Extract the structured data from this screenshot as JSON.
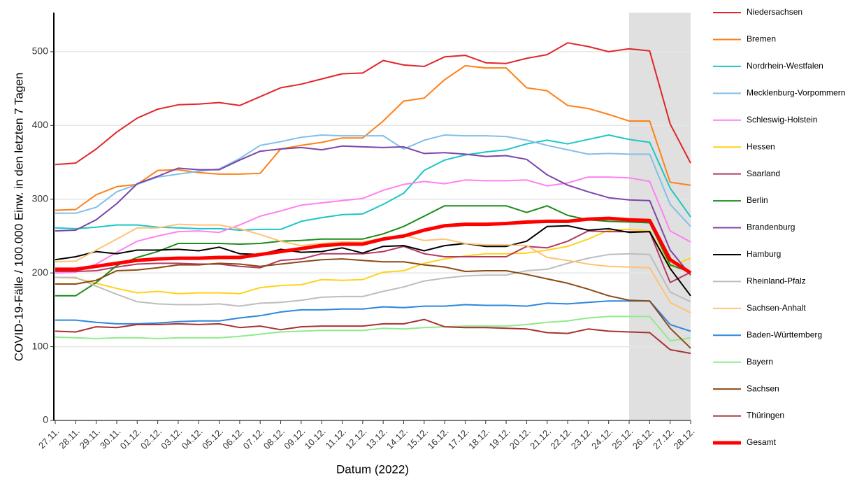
{
  "chart_data": {
    "type": "line",
    "y_label": "COVID-19-Fälle / 100.000 Einw. in den letzten 7 Tagen",
    "x_label": "Datum (2022)",
    "categories": [
      "27.11.",
      "28.11.",
      "29.11.",
      "30.11.",
      "01.12.",
      "02.12.",
      "03.12.",
      "04.12.",
      "05.12.",
      "06.12.",
      "07.12.",
      "08.12.",
      "09.12.",
      "10.12.",
      "11.12.",
      "12.12.",
      "13.12.",
      "14.12.",
      "15.12.",
      "16.12.",
      "17.12.",
      "18.12.",
      "19.12.",
      "20.12.",
      "21.12.",
      "22.12.",
      "23.12.",
      "24.12.",
      "25.12.",
      "26.12.",
      "27.12.",
      "28.12."
    ],
    "ylim": [
      0,
      553
    ],
    "yticks": [
      0,
      100,
      200,
      300,
      400,
      500
    ],
    "grid": true,
    "highlight": {
      "from": "25.12.",
      "to": "28.12.",
      "color": "#e0e0e0"
    },
    "legend": "right",
    "series": [
      {
        "name": "Niedersachsen",
        "color": "#e0262a",
        "values": [
          347,
          349,
          368,
          391,
          410,
          422,
          428,
          429,
          431,
          427,
          439,
          451,
          456,
          463,
          470,
          471,
          488,
          482,
          480,
          493,
          495,
          485,
          484,
          491,
          496,
          512,
          507,
          500,
          504,
          501,
          402,
          349
        ]
      },
      {
        "name": "Bremen",
        "color": "#ff8018",
        "values": [
          285,
          286,
          306,
          317,
          320,
          339,
          340,
          336,
          334,
          334,
          335,
          368,
          373,
          377,
          383,
          383,
          406,
          433,
          437,
          462,
          481,
          478,
          478,
          451,
          447,
          427,
          423,
          415,
          406,
          406,
          323,
          319
        ]
      },
      {
        "name": "Nordrhein-Westfalen",
        "color": "#1cc6c6",
        "values": [
          261,
          260,
          262,
          265,
          265,
          262,
          261,
          260,
          260,
          258,
          259,
          259,
          270,
          275,
          279,
          280,
          293,
          308,
          339,
          353,
          360,
          364,
          367,
          375,
          380,
          375,
          381,
          387,
          381,
          377,
          315,
          276
        ]
      },
      {
        "name": "Mecklenburg-Vorpommern",
        "color": "#82bfeb",
        "values": [
          281,
          281,
          289,
          310,
          320,
          330,
          334,
          338,
          341,
          355,
          373,
          378,
          384,
          387,
          386,
          386,
          386,
          368,
          380,
          387,
          386,
          386,
          385,
          380,
          373,
          367,
          361,
          362,
          361,
          361,
          293,
          263
        ]
      },
      {
        "name": "Schleswig-Holstein",
        "color": "#ff80f2",
        "values": [
          200,
          201,
          212,
          228,
          243,
          250,
          256,
          257,
          255,
          265,
          277,
          284,
          292,
          295,
          298,
          301,
          312,
          320,
          324,
          321,
          326,
          325,
          325,
          326,
          318,
          322,
          330,
          330,
          329,
          324,
          257,
          242
        ]
      },
      {
        "name": "Hessen",
        "color": "#ffd21a",
        "values": [
          194,
          193,
          186,
          179,
          173,
          175,
          172,
          173,
          173,
          172,
          180,
          183,
          184,
          191,
          190,
          191,
          201,
          203,
          213,
          219,
          223,
          226,
          226,
          227,
          231,
          236,
          246,
          258,
          259,
          257,
          209,
          220
        ]
      },
      {
        "name": "Saarland",
        "color": "#b23a64",
        "values": [
          202,
          202,
          203,
          208,
          212,
          213,
          213,
          212,
          212,
          209,
          207,
          217,
          219,
          226,
          226,
          226,
          229,
          236,
          226,
          222,
          222,
          222,
          222,
          236,
          234,
          243,
          257,
          256,
          256,
          256,
          187,
          201
        ]
      },
      {
        "name": "Berlin",
        "color": "#1a8c1a",
        "values": [
          169,
          169,
          187,
          210,
          221,
          229,
          240,
          240,
          240,
          239,
          240,
          243,
          244,
          246,
          246,
          246,
          253,
          263,
          277,
          291,
          291,
          291,
          291,
          282,
          291,
          278,
          272,
          270,
          269,
          268,
          211,
          201
        ]
      },
      {
        "name": "Brandenburg",
        "color": "#7b45a8",
        "values": [
          257,
          258,
          272,
          294,
          321,
          331,
          342,
          340,
          340,
          353,
          365,
          368,
          370,
          367,
          372,
          371,
          370,
          371,
          362,
          363,
          361,
          358,
          359,
          354,
          333,
          319,
          310,
          302,
          299,
          298,
          231,
          197
        ]
      },
      {
        "name": "Hamburg",
        "color": "#000000",
        "values": [
          218,
          222,
          229,
          226,
          231,
          231,
          232,
          230,
          235,
          226,
          225,
          232,
          228,
          229,
          234,
          227,
          236,
          237,
          230,
          237,
          240,
          236,
          236,
          243,
          263,
          264,
          258,
          260,
          255,
          256,
          206,
          169
        ]
      },
      {
        "name": "Rheinland-Pfalz",
        "color": "#bdbdbd",
        "values": [
          194,
          194,
          182,
          171,
          161,
          158,
          157,
          157,
          158,
          155,
          159,
          160,
          163,
          167,
          168,
          168,
          175,
          181,
          189,
          193,
          196,
          197,
          197,
          203,
          205,
          213,
          220,
          225,
          226,
          225,
          174,
          161
        ]
      },
      {
        "name": "Sachsen-Anhalt",
        "color": "#ffc274",
        "values": [
          215,
          216,
          231,
          246,
          261,
          261,
          266,
          265,
          265,
          260,
          252,
          243,
          237,
          240,
          242,
          242,
          247,
          251,
          244,
          246,
          240,
          238,
          238,
          237,
          221,
          217,
          212,
          209,
          208,
          207,
          160,
          146
        ]
      },
      {
        "name": "Baden-Württemberg",
        "color": "#2e86de",
        "values": [
          136,
          136,
          133,
          131,
          131,
          132,
          134,
          135,
          135,
          139,
          142,
          147,
          150,
          150,
          151,
          151,
          154,
          153,
          155,
          155,
          157,
          156,
          156,
          155,
          159,
          158,
          160,
          162,
          162,
          162,
          130,
          121
        ]
      },
      {
        "name": "Bayern",
        "color": "#90ea8c",
        "values": [
          113,
          112,
          111,
          112,
          112,
          111,
          112,
          112,
          112,
          114,
          117,
          120,
          121,
          122,
          122,
          122,
          125,
          124,
          126,
          127,
          128,
          128,
          128,
          130,
          133,
          135,
          139,
          141,
          141,
          141,
          108,
          112
        ]
      },
      {
        "name": "Sachsen",
        "color": "#8b4a14",
        "values": [
          185,
          185,
          190,
          203,
          204,
          207,
          211,
          211,
          213,
          212,
          209,
          212,
          215,
          218,
          219,
          217,
          215,
          215,
          211,
          208,
          202,
          203,
          203,
          198,
          192,
          186,
          178,
          169,
          163,
          162,
          125,
          98
        ]
      },
      {
        "name": "Thüringen",
        "color": "#a83232",
        "values": [
          121,
          120,
          127,
          126,
          130,
          130,
          131,
          130,
          131,
          126,
          128,
          123,
          127,
          128,
          128,
          128,
          131,
          131,
          137,
          127,
          126,
          126,
          125,
          124,
          119,
          118,
          124,
          121,
          120,
          119,
          96,
          91
        ]
      },
      {
        "name": "Gesamt",
        "color": "#ff0000",
        "linewidth": 5,
        "values": [
          205,
          205,
          209,
          213,
          217,
          219,
          220,
          220,
          221,
          221,
          225,
          229,
          233,
          237,
          239,
          239,
          246,
          250,
          258,
          264,
          266,
          266,
          267,
          269,
          270,
          270,
          273,
          274,
          272,
          271,
          218,
          200
        ]
      }
    ]
  }
}
